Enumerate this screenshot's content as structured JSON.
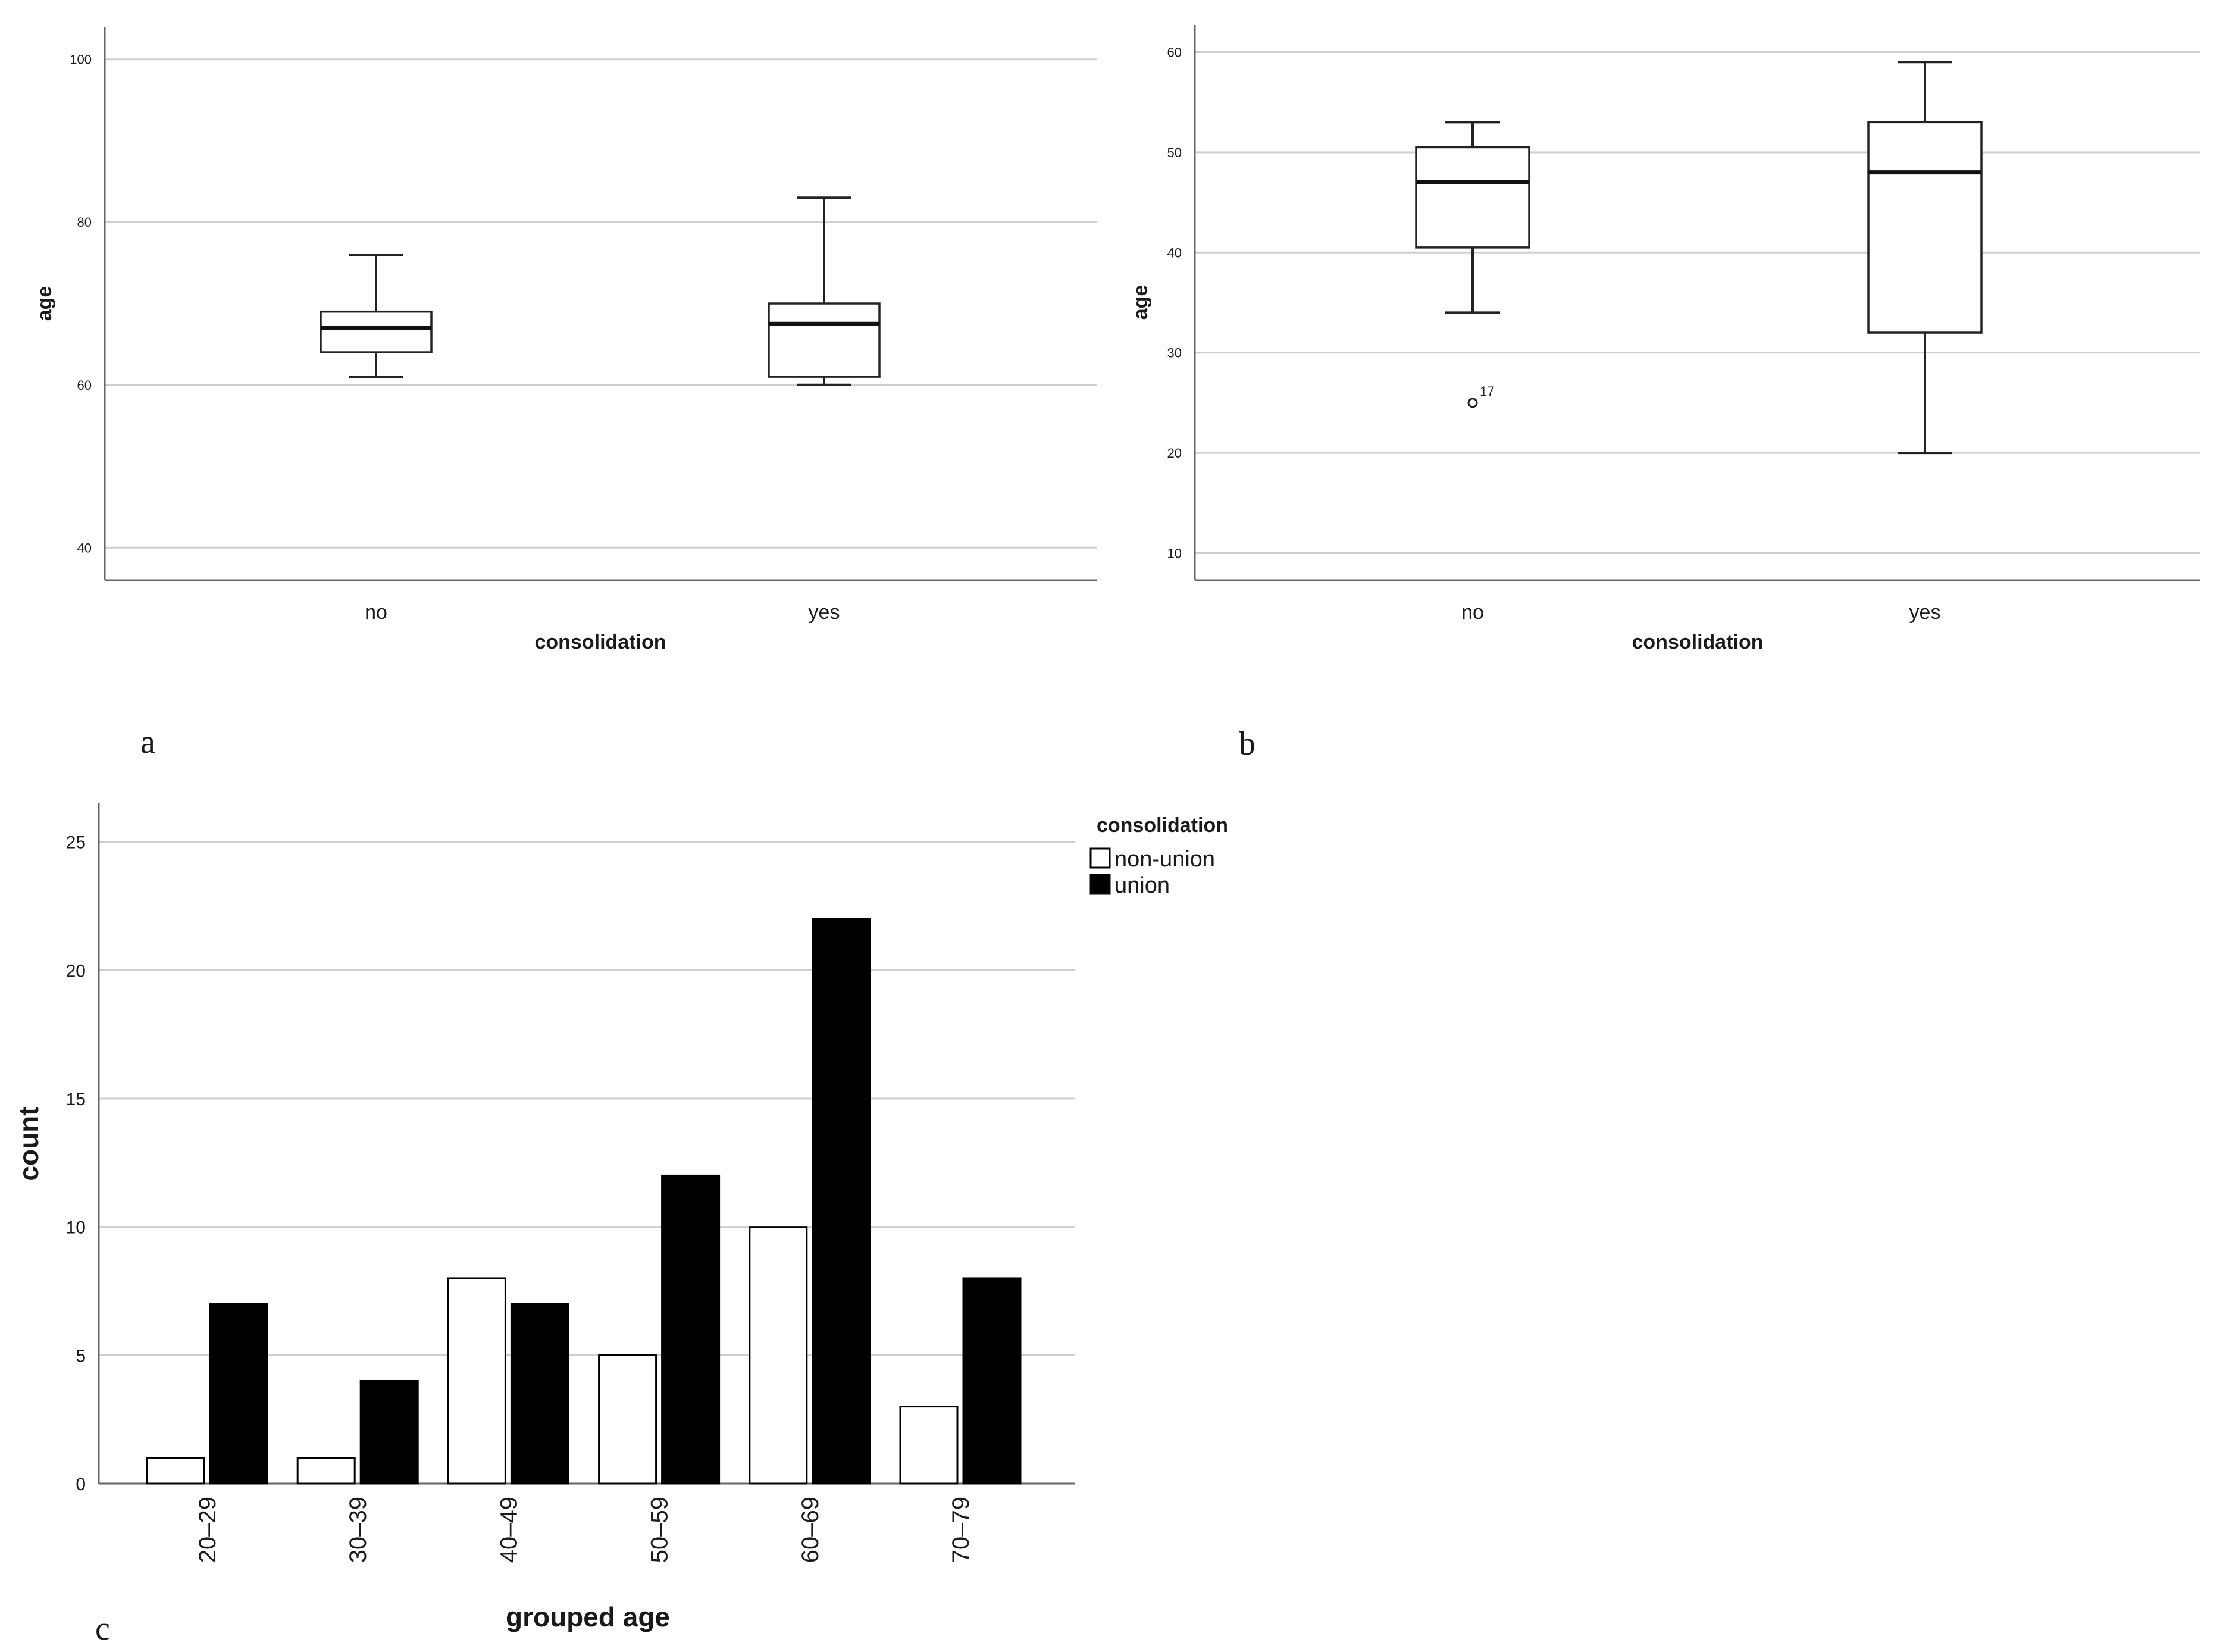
{
  "panel_labels": [
    "a",
    "b",
    "c"
  ],
  "chart_data": [
    {
      "type": "boxplot",
      "panel": "a",
      "title": "",
      "xlabel": "consolidation",
      "ylabel": "age",
      "ylim": [
        36,
        104
      ],
      "yticks": [
        40,
        60,
        80,
        100
      ],
      "grid": true,
      "categories": [
        "no",
        "yes"
      ],
      "boxes": [
        {
          "category": "no",
          "whisker_low": 61,
          "q1": 64,
          "median": 67,
          "q3": 69,
          "whisker_high": 76,
          "outliers": []
        },
        {
          "category": "yes",
          "whisker_low": 60,
          "q1": 61,
          "median": 67.5,
          "q3": 70,
          "whisker_high": 83,
          "outliers": []
        }
      ]
    },
    {
      "type": "boxplot",
      "panel": "b",
      "title": "",
      "xlabel": "consolidation",
      "ylabel": "age",
      "ylim": [
        7.3,
        62.7
      ],
      "yticks": [
        10,
        20,
        30,
        40,
        50,
        60
      ],
      "grid": true,
      "categories": [
        "no",
        "yes"
      ],
      "boxes": [
        {
          "category": "no",
          "whisker_low": 34,
          "q1": 40.5,
          "median": 47,
          "q3": 50.5,
          "whisker_high": 53,
          "outliers": [
            {
              "value": 25,
              "label": "17"
            }
          ]
        },
        {
          "category": "yes",
          "whisker_low": 20,
          "q1": 32,
          "median": 48,
          "q3": 53,
          "whisker_high": 59,
          "outliers": []
        }
      ]
    },
    {
      "type": "bar",
      "panel": "c",
      "title": "",
      "xlabel": "grouped age",
      "ylabel": "count",
      "ylim": [
        0,
        26.5
      ],
      "yticks": [
        0,
        5,
        10,
        15,
        20,
        25
      ],
      "grid": true,
      "legend_title": "consolidation",
      "legend_position": "top-right",
      "categories": [
        "20–29",
        "30–39",
        "40–49",
        "50–59",
        "60–69",
        "70–79"
      ],
      "series": [
        {
          "name": "non-union",
          "color": "#ffffff",
          "values": [
            1,
            1,
            8,
            5,
            10,
            3
          ]
        },
        {
          "name": "union",
          "color": "#000000",
          "values": [
            7,
            4,
            7,
            12,
            22,
            8
          ]
        }
      ]
    }
  ]
}
